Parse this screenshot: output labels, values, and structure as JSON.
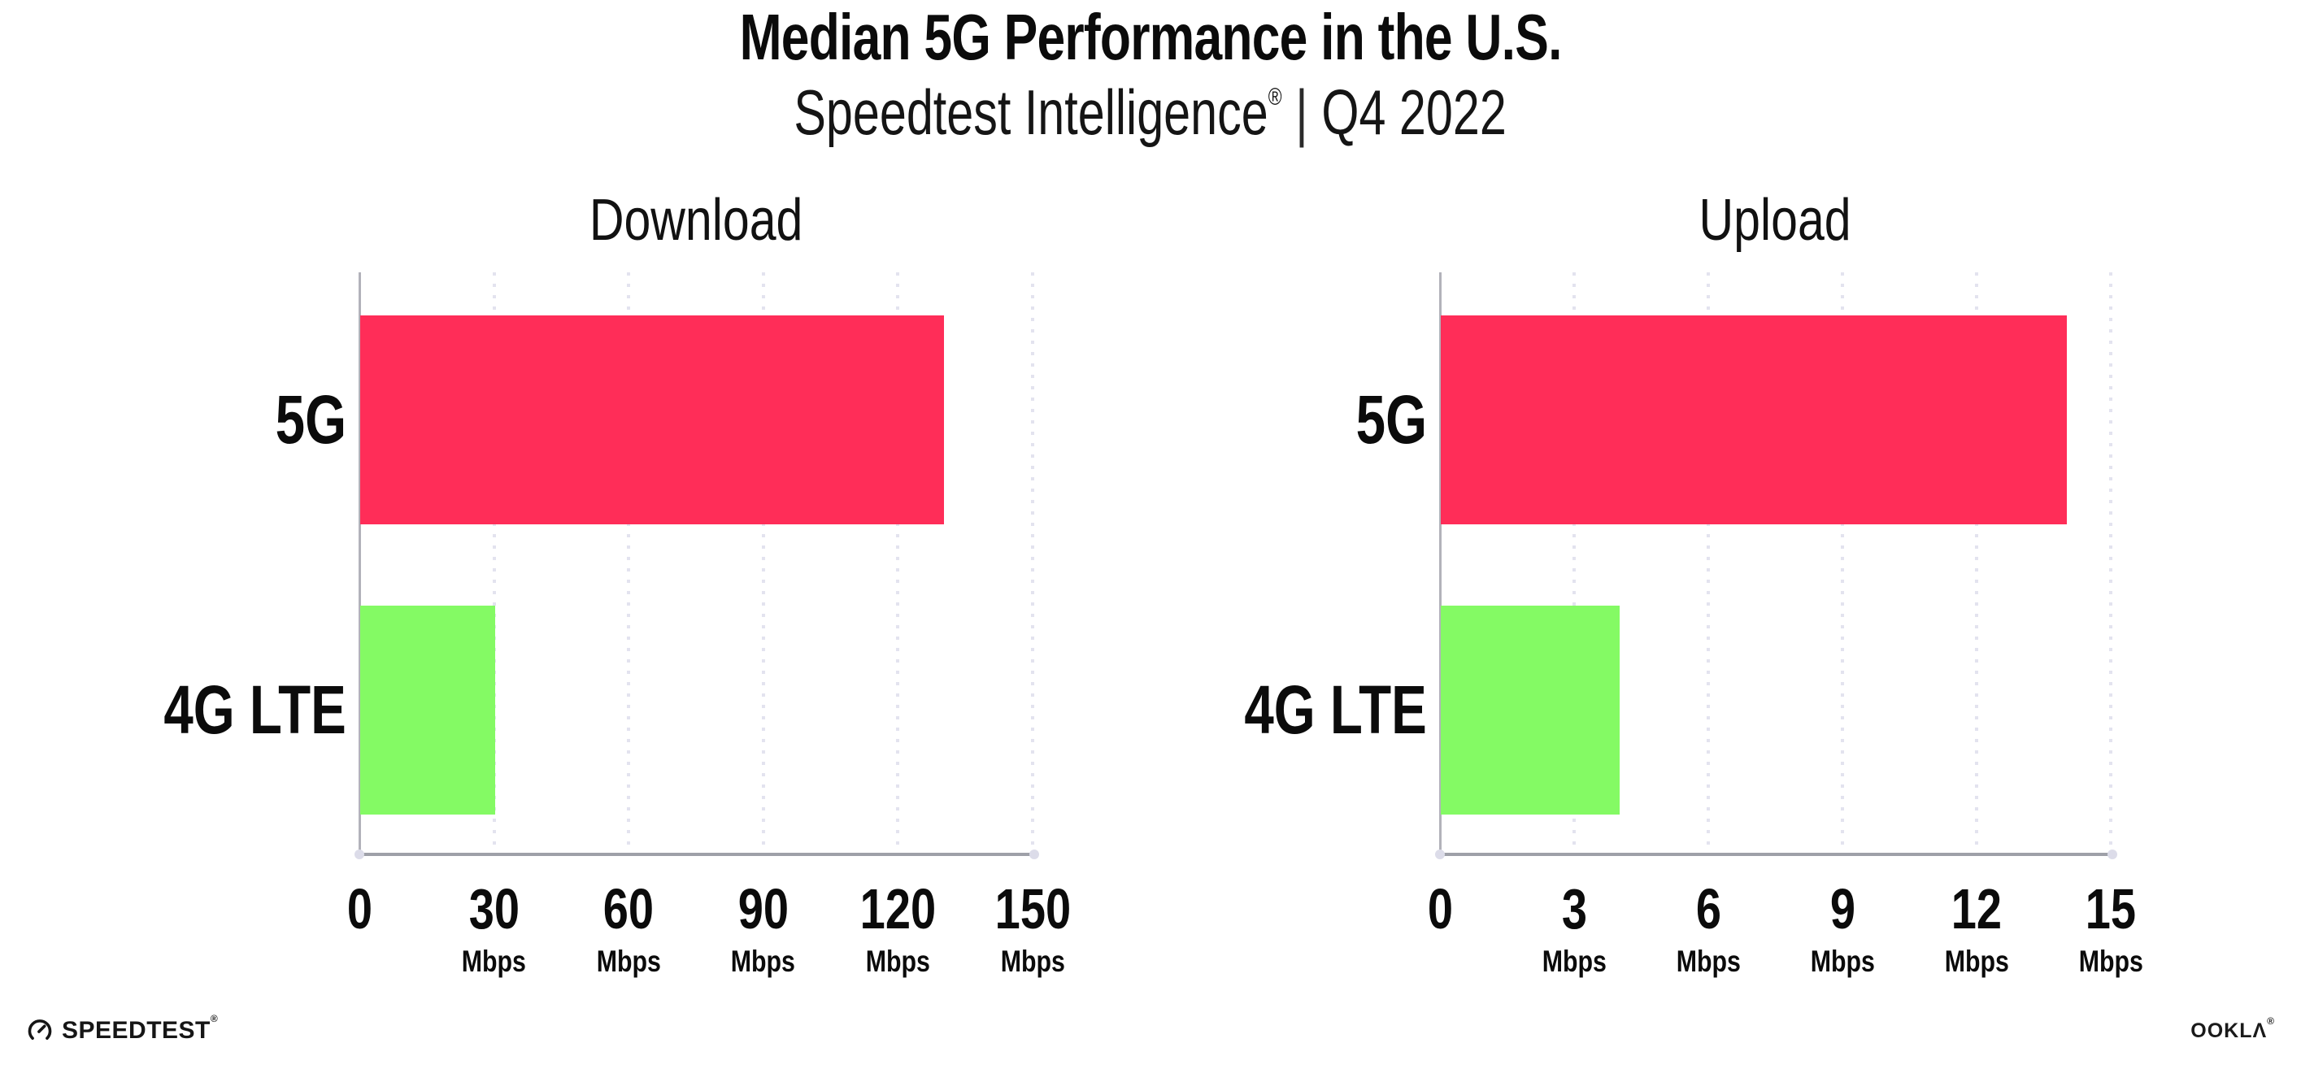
{
  "page": {
    "background": "#FFFFFF"
  },
  "header": {
    "title": "Median 5G Performance in the U.S.",
    "subtitle_brand": "Speedtest Intelligence",
    "subtitle_reg": "®",
    "subtitle_separator": "|",
    "subtitle_period": "Q4 2022"
  },
  "chart_data": [
    {
      "type": "bar",
      "orientation": "horizontal",
      "title": "Download",
      "categories": [
        "5G",
        "4G LTE"
      ],
      "values": [
        130,
        30
      ],
      "unit": "Mbps",
      "xlim": [
        0,
        150
      ],
      "xticks": [
        {
          "value": 0,
          "label": "0",
          "unit": ""
        },
        {
          "value": 30,
          "label": "30",
          "unit": "Mbps"
        },
        {
          "value": 60,
          "label": "60",
          "unit": "Mbps"
        },
        {
          "value": 90,
          "label": "90",
          "unit": "Mbps"
        },
        {
          "value": 120,
          "label": "120",
          "unit": "Mbps"
        },
        {
          "value": 150,
          "label": "150",
          "unit": "Mbps"
        }
      ],
      "bar_colors": [
        "#FF2D58",
        "#84FA64"
      ],
      "grid": "dotted-vertical",
      "legend": "none"
    },
    {
      "type": "bar",
      "orientation": "horizontal",
      "title": "Upload",
      "categories": [
        "5G",
        "4G LTE"
      ],
      "values": [
        14,
        4
      ],
      "unit": "Mbps",
      "xlim": [
        0,
        15
      ],
      "xticks": [
        {
          "value": 0,
          "label": "0",
          "unit": ""
        },
        {
          "value": 3,
          "label": "3",
          "unit": "Mbps"
        },
        {
          "value": 6,
          "label": "6",
          "unit": "Mbps"
        },
        {
          "value": 9,
          "label": "9",
          "unit": "Mbps"
        },
        {
          "value": 12,
          "label": "12",
          "unit": "Mbps"
        },
        {
          "value": 15,
          "label": "15",
          "unit": "Mbps"
        }
      ],
      "bar_colors": [
        "#FF2D58",
        "#84FA64"
      ],
      "grid": "dotted-vertical",
      "legend": "none"
    }
  ],
  "colors": {
    "bar_5g": "#FF2D58",
    "bar_4g_lte": "#84FA64",
    "axis_line": "#9EA0A8",
    "axis_end_dot": "#DCDCE9",
    "y_axis_line": "#B2B2BA",
    "gridline": "#E3E3EF",
    "text": "#0B0B0B"
  },
  "footer": {
    "speedtest_logo_text": "SPEEDTEST",
    "speedtest_reg": "®",
    "ookla_logo_text": "OOKLΛ",
    "ookla_reg": "®"
  }
}
